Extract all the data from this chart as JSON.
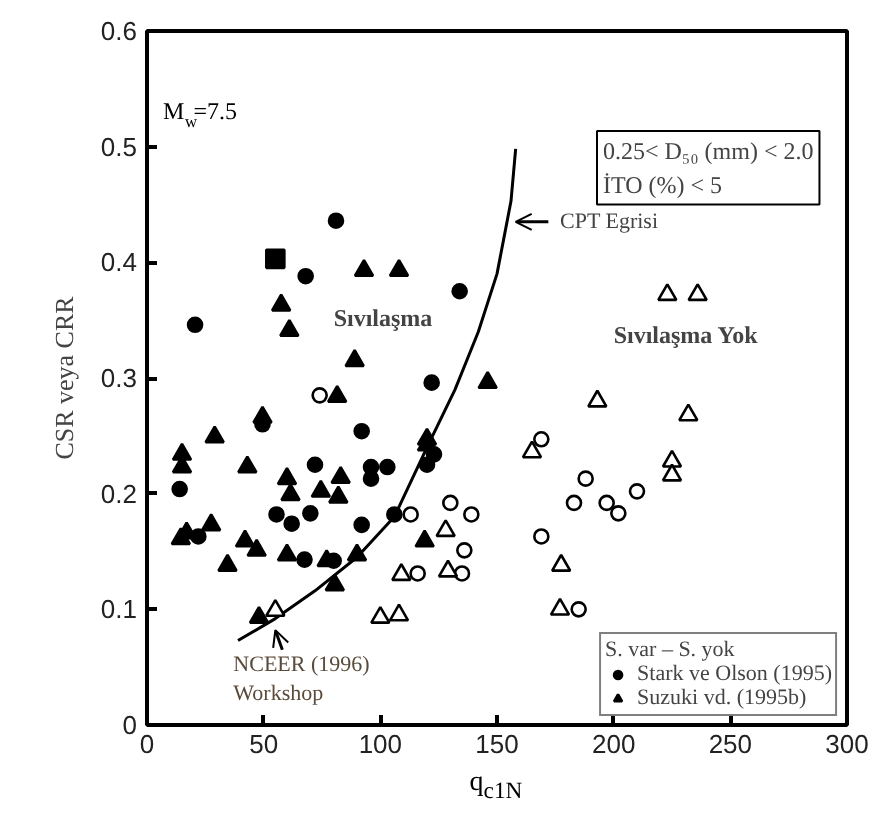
{
  "chart_data": {
    "type": "scatter",
    "xlabel": "q$_{c1N}$",
    "ylabel": "CSR veya CRR",
    "xlim": [
      0,
      300
    ],
    "ylim": [
      0,
      0.6
    ],
    "xticks": [
      0,
      50,
      100,
      150,
      200,
      250,
      300
    ],
    "yticks": [
      0,
      0.1,
      0.2,
      0.3,
      0.4,
      0.5,
      0.6
    ],
    "grid": false,
    "legend": "bottom right",
    "legend_title": "S. var – S. yok",
    "series": [
      {
        "type": "line",
        "color": "#000000",
        "marker": "none",
        "x": [
          39,
          55,
          72,
          90,
          106,
          120,
          132,
          142,
          150,
          156,
          158
        ],
        "values": [
          0.073,
          0.092,
          0.116,
          0.145,
          0.18,
          0.24,
          0.29,
          0.34,
          0.39,
          0.453,
          0.498
        ]
      },
      {
        "name": "Stark ve Olson (1995)",
        "color": "#000000",
        "marker": "circle",
        "x": [
          20.6,
          81,
          68,
          122,
          134,
          14,
          22,
          49.5,
          72,
          55.5,
          62,
          70,
          67.5,
          92,
          96,
          103,
          96,
          106,
          92,
          80,
          120,
          123
        ],
        "values": [
          0.346,
          0.436,
          0.388,
          0.296,
          0.375,
          0.204,
          0.163,
          0.26,
          0.225,
          0.182,
          0.174,
          0.183,
          0.143,
          0.254,
          0.223,
          0.223,
          0.213,
          0.182,
          0.173,
          0.142,
          0.225,
          0.234
        ]
      },
      {
        "color": "#000000",
        "marker": "circle_open",
        "x": [
          74,
          113,
          130,
          139,
          136,
          135,
          116,
          169,
          169,
          183,
          188,
          197,
          202,
          210,
          185
        ],
        "values": [
          0.285,
          0.182,
          0.192,
          0.182,
          0.151,
          0.131,
          0.131,
          0.247,
          0.163,
          0.192,
          0.213,
          0.192,
          0.183,
          0.202,
          0.1
        ]
      },
      {
        "name": "Suzuki vd. (1995b)",
        "color": "#000000",
        "marker": "triangle",
        "x": [
          57.5,
          61,
          93,
          108,
          89,
          146,
          15,
          15,
          29,
          43,
          14.5,
          17,
          27.5,
          34.5,
          49.5,
          42,
          47,
          60,
          61.5,
          60,
          74.5,
          83,
          82,
          77,
          80.5,
          81.5,
          90,
          120,
          48,
          119,
          120
        ],
        "values": [
          0.363,
          0.341,
          0.393,
          0.393,
          0.315,
          0.296,
          0.234,
          0.223,
          0.249,
          0.223,
          0.161,
          0.166,
          0.173,
          0.138,
          0.266,
          0.159,
          0.151,
          0.213,
          0.199,
          0.147,
          0.202,
          0.214,
          0.197,
          0.142,
          0.121,
          0.284,
          0.147,
          0.242,
          0.093,
          0.159,
          0.247
        ]
      },
      {
        "color": "#000000",
        "marker": "triangle_open",
        "x": [
          55,
          100,
          108,
          109,
          128,
          129,
          165,
          177.5,
          177,
          193,
          232,
          225,
          225,
          223,
          236
        ],
        "values": [
          0.099,
          0.093,
          0.095,
          0.13,
          0.168,
          0.133,
          0.236,
          0.138,
          0.1,
          0.28,
          0.268,
          0.228,
          0.216,
          0.372,
          0.372
        ]
      },
      {
        "color": "#000000",
        "marker": "square",
        "x": [
          55
        ],
        "values": [
          0.403
        ]
      }
    ],
    "annotations": [
      "M$_{w}$=7.5",
      "0.25< D₅₀ (mm) < 2.0\nİTO (%) < 5",
      {
        "text": "CPT Egrisi",
        "x": 157,
        "y": 0.435
      },
      "Sıvılaşma",
      "Sıvılaşma Yok",
      {
        "text": "NCEER (1996)\nWorkshop",
        "x": 55,
        "y": 0.085
      }
    ]
  }
}
